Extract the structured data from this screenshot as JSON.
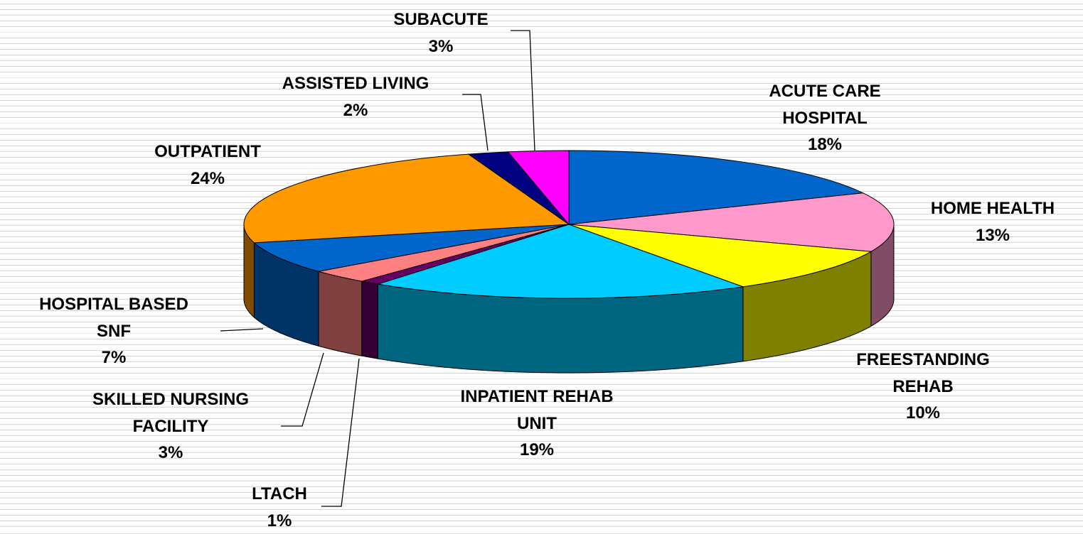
{
  "chart_data": {
    "type": "pie3d",
    "categories": [
      "ACUTE CARE\nHOSPITAL",
      "HOME HEALTH",
      "FREESTANDING\nREHAB",
      "INPATIENT REHAB\nUNIT",
      "LTACH",
      "SKILLED NURSING\nFACILITY",
      "HOSPITAL BASED\nSNF",
      "OUTPATIENT",
      "ASSISTED LIVING",
      "SUBACUTE"
    ],
    "values": [
      18,
      13,
      10,
      19,
      1,
      3,
      7,
      24,
      2,
      3
    ],
    "value_labels": [
      "18%",
      "13%",
      "10%",
      "19%",
      "1%",
      "3%",
      "7%",
      "24%",
      "2%",
      "3%"
    ],
    "colors": [
      "#0066cc",
      "#ff99cc",
      "#ffff00",
      "#00ccff",
      "#660066",
      "#ff8080",
      "#0066cc",
      "#ff9900",
      "#000080",
      "#ff00ff"
    ]
  }
}
